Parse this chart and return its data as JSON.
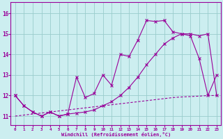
{
  "xlabel": "Windchill (Refroidissement éolien,°C)",
  "bg_color": "#cceef0",
  "line_color": "#990099",
  "grid_color": "#99cccc",
  "x_ticks": [
    0,
    1,
    2,
    3,
    4,
    5,
    6,
    7,
    8,
    9,
    10,
    11,
    12,
    13,
    14,
    15,
    16,
    17,
    18,
    19,
    20,
    21,
    22,
    23
  ],
  "y_ticks": [
    11,
    12,
    13,
    14,
    15,
    16
  ],
  "xlim": [
    -0.5,
    23.5
  ],
  "ylim": [
    10.55,
    16.55
  ],
  "line1_x": [
    0,
    1,
    2,
    3,
    4,
    5,
    6,
    7,
    8,
    9,
    10,
    11,
    12,
    13,
    14,
    15,
    16,
    17,
    18,
    19,
    20,
    21,
    22,
    23
  ],
  "line1_y": [
    12.0,
    11.5,
    11.2,
    11.0,
    11.2,
    11.0,
    11.1,
    12.9,
    11.9,
    12.1,
    13.0,
    12.5,
    14.0,
    13.9,
    14.7,
    15.65,
    15.6,
    15.65,
    15.1,
    15.0,
    14.9,
    13.8,
    12.0,
    13.0
  ],
  "line2_x": [
    0,
    1,
    2,
    3,
    4,
    5,
    6,
    7,
    8,
    9,
    10,
    11,
    12,
    13,
    14,
    15,
    16,
    17,
    18,
    19,
    20,
    21,
    22,
    23
  ],
  "line2_y": [
    12.0,
    11.5,
    11.2,
    11.0,
    11.2,
    11.0,
    11.1,
    11.15,
    11.2,
    11.3,
    11.5,
    11.7,
    12.0,
    12.4,
    12.9,
    13.5,
    14.0,
    14.5,
    14.8,
    15.0,
    15.0,
    14.9,
    15.0,
    12.0
  ],
  "line3_x": [
    0,
    1,
    2,
    3,
    4,
    5,
    6,
    7,
    8,
    9,
    10,
    11,
    12,
    13,
    14,
    15,
    16,
    17,
    18,
    19,
    20,
    21,
    22,
    23
  ],
  "line3_y": [
    11.0,
    11.05,
    11.1,
    11.15,
    11.2,
    11.25,
    11.3,
    11.35,
    11.4,
    11.45,
    11.5,
    11.55,
    11.6,
    11.65,
    11.7,
    11.75,
    11.8,
    11.85,
    11.9,
    11.93,
    11.95,
    11.97,
    12.0,
    12.0
  ]
}
